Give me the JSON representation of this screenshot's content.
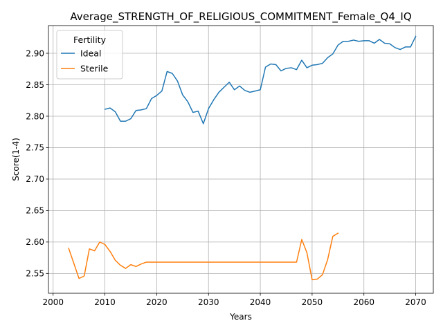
{
  "chart_data": {
    "type": "line",
    "title": "Average_STRENGTH_OF_RELIGIOUS_COMMITMENT_Female_Q4_IQ",
    "xlabel": "Years",
    "ylabel": "Score(1-4)",
    "xlim": [
      1999.1,
      2073.4
    ],
    "ylim": [
      2.5185,
      2.944
    ],
    "xticks": [
      2000,
      2010,
      2020,
      2030,
      2040,
      2050,
      2060,
      2070
    ],
    "yticks": [
      2.55,
      2.6,
      2.65,
      2.7,
      2.75,
      2.8,
      2.85,
      2.9
    ],
    "xtick_labels": [
      "2000",
      "2010",
      "2020",
      "2030",
      "2040",
      "2050",
      "2060",
      "2070"
    ],
    "ytick_labels": [
      "2.55",
      "2.60",
      "2.65",
      "2.70",
      "2.75",
      "2.80",
      "2.85",
      "2.90"
    ],
    "grid": true,
    "legend": {
      "title": "Fertility",
      "placement": "top-left"
    },
    "series": [
      {
        "name": "Ideal",
        "color": "#1f77b4",
        "x": [
          2010,
          2011,
          2012,
          2013,
          2014,
          2015,
          2016,
          2017,
          2018,
          2019,
          2020,
          2021,
          2022,
          2023,
          2024,
          2025,
          2026,
          2027,
          2028,
          2029,
          2030,
          2031,
          2032,
          2033,
          2034,
          2035,
          2036,
          2037,
          2038,
          2039,
          2040,
          2041,
          2042,
          2043,
          2044,
          2045,
          2046,
          2047,
          2048,
          2049,
          2050,
          2051,
          2052,
          2053,
          2054,
          2055,
          2056,
          2057,
          2058,
          2059,
          2060,
          2061,
          2062,
          2063,
          2064,
          2065,
          2066,
          2067,
          2068,
          2069,
          2070
        ],
        "y": [
          2.811,
          2.813,
          2.807,
          2.792,
          2.792,
          2.796,
          2.809,
          2.81,
          2.812,
          2.828,
          2.833,
          2.84,
          2.871,
          2.868,
          2.856,
          2.834,
          2.823,
          2.806,
          2.808,
          2.788,
          2.812,
          2.826,
          2.838,
          2.846,
          2.854,
          2.842,
          2.848,
          2.841,
          2.838,
          2.84,
          2.842,
          2.878,
          2.883,
          2.882,
          2.872,
          2.876,
          2.877,
          2.874,
          2.889,
          2.877,
          2.881,
          2.882,
          2.884,
          2.893,
          2.899,
          2.913,
          2.919,
          2.919,
          2.921,
          2.919,
          2.92,
          2.92,
          2.916,
          2.922,
          2.916,
          2.915,
          2.909,
          2.906,
          2.91,
          2.91,
          2.927
        ]
      },
      {
        "name": "Sterile",
        "color": "#ff7f0e",
        "x": [
          2003,
          2004,
          2005,
          2006,
          2007,
          2008,
          2009,
          2010,
          2011,
          2012,
          2013,
          2014,
          2015,
          2016,
          2017,
          2018,
          2019,
          2020,
          2021,
          2022,
          2023,
          2024,
          2025,
          2026,
          2027,
          2028,
          2029,
          2030,
          2031,
          2032,
          2033,
          2034,
          2035,
          2036,
          2037,
          2038,
          2039,
          2040,
          2041,
          2042,
          2043,
          2044,
          2045,
          2046,
          2047,
          2048,
          2049,
          2050,
          2051,
          2052,
          2053,
          2054,
          2055
        ],
        "y": [
          2.59,
          2.566,
          2.542,
          2.546,
          2.589,
          2.586,
          2.6,
          2.596,
          2.585,
          2.571,
          2.563,
          2.558,
          2.564,
          2.561,
          2.565,
          2.568,
          2.568,
          2.568,
          2.568,
          2.568,
          2.568,
          2.568,
          2.568,
          2.568,
          2.568,
          2.568,
          2.568,
          2.568,
          2.568,
          2.568,
          2.568,
          2.568,
          2.568,
          2.568,
          2.568,
          2.568,
          2.568,
          2.568,
          2.568,
          2.568,
          2.568,
          2.568,
          2.568,
          2.568,
          2.568,
          2.604,
          2.583,
          2.54,
          2.541,
          2.548,
          2.572,
          2.609,
          2.614
        ]
      }
    ]
  }
}
